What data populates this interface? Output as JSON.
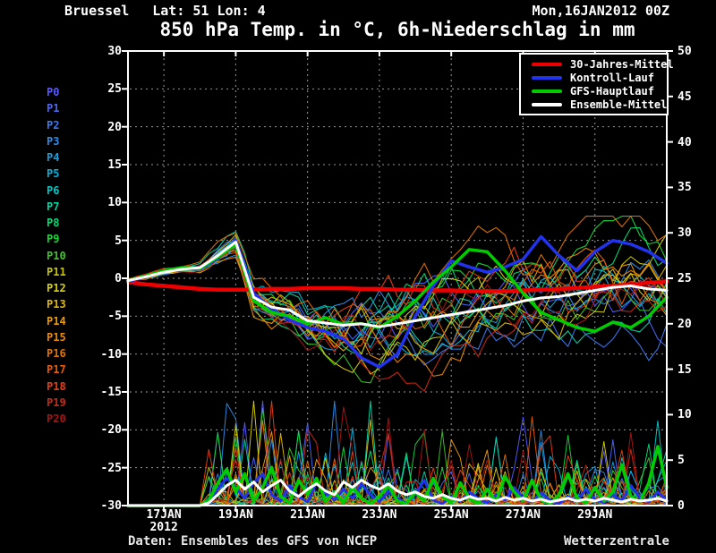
{
  "header": {
    "station": "Bruessel",
    "coords": "Lat: 51 Lon: 4",
    "datetime": "Mon,16JAN2012 00Z",
    "title": "850 hPa Temp. in °C, 6h-Niederschlag in mm"
  },
  "footer": {
    "source": "Daten: Ensembles des GFS von NCEP",
    "brand": "Wetterzentrale"
  },
  "legend": {
    "items": [
      {
        "label": "30-Jahres-Mittel",
        "color": "#ee0000"
      },
      {
        "label": "Kontroll-Lauf",
        "color": "#2233ee"
      },
      {
        "label": "GFS-Hauptlauf",
        "color": "#00cc00"
      },
      {
        "label": "Ensemble-Mittel",
        "color": "#ffffff"
      }
    ]
  },
  "chart_data": {
    "type": "line",
    "title": "850 hPa Temp. in °C, 6h-Niederschlag in mm",
    "x_axis": {
      "start": "16JAN2012 00Z",
      "unit": "days",
      "range": [
        0,
        15
      ],
      "tick_days": [
        1,
        3,
        5,
        7,
        9,
        11,
        13
      ],
      "tick_labels": [
        "17JAN",
        "19JAN",
        "21JAN",
        "23JAN",
        "25JAN",
        "27JAN",
        "29JAN"
      ],
      "year_label": "2012"
    },
    "y_axis_left": {
      "unit": "°C",
      "range": [
        -30,
        30
      ],
      "ticks": [
        30,
        25,
        20,
        15,
        10,
        5,
        0,
        -5,
        -10,
        -15,
        -20,
        -25,
        -30
      ],
      "grid": true
    },
    "y_axis_right": {
      "unit": "mm",
      "range": [
        0,
        50
      ],
      "ticks": [
        50,
        45,
        40,
        35,
        30,
        25,
        20,
        15,
        10,
        5,
        0
      ],
      "grid": false
    },
    "temperature_series": [
      {
        "name": "30-Jahres-Mittel",
        "color": "#ee0000",
        "width": 4.5,
        "step_days": 0.5,
        "values": [
          -0.5,
          -0.8,
          -1.0,
          -1.2,
          -1.4,
          -1.5,
          -1.5,
          -1.5,
          -1.4,
          -1.4,
          -1.3,
          -1.3,
          -1.3,
          -1.4,
          -1.4,
          -1.5,
          -1.5,
          -1.6,
          -1.6,
          -1.7,
          -1.7,
          -1.7,
          -1.6,
          -1.5,
          -1.4,
          -1.3,
          -1.1,
          -1.0,
          -0.8,
          -0.6,
          -0.4
        ]
      },
      {
        "name": "Kontroll-Lauf",
        "color": "#2233ee",
        "width": 3.5,
        "step_days": 0.5,
        "values": [
          -0.4,
          0.2,
          0.9,
          1.3,
          1.2,
          2.6,
          5.0,
          -2.0,
          -4.0,
          -5.5,
          -6.5,
          -7.0,
          -8.0,
          -10.5,
          -11.7,
          -10.0,
          -5.0,
          -1.0,
          2.3,
          1.5,
          0.8,
          1.5,
          2.5,
          5.5,
          3.0,
          1.0,
          3.5,
          5.0,
          4.5,
          3.5,
          2.0
        ]
      },
      {
        "name": "GFS-Hauptlauf",
        "color": "#00cc00",
        "width": 3.5,
        "step_days": 0.5,
        "values": [
          -0.3,
          0.3,
          1.0,
          1.4,
          1.3,
          2.8,
          4.5,
          -3.0,
          -4.5,
          -5.0,
          -6.0,
          -5.2,
          -6.1,
          -6.0,
          -6.5,
          -5.0,
          -3.0,
          -0.5,
          1.5,
          3.8,
          3.5,
          1.0,
          -2.0,
          -4.5,
          -5.5,
          -6.5,
          -7.0,
          -5.8,
          -6.5,
          -5.0,
          -2.5
        ]
      },
      {
        "name": "Ensemble-Mittel",
        "color": "#ffffff",
        "width": 3,
        "step_days": 0.5,
        "values": [
          -0.3,
          0.2,
          0.8,
          1.2,
          1.4,
          3.0,
          4.8,
          -2.5,
          -3.8,
          -4.2,
          -5.6,
          -5.9,
          -6.2,
          -6.0,
          -6.4,
          -6.0,
          -5.6,
          -5.2,
          -4.8,
          -4.4,
          -4.0,
          -3.6,
          -3.0,
          -2.6,
          -2.4,
          -2.0,
          -1.6,
          -1.2,
          -1.0,
          -1.4,
          -1.6
        ]
      }
    ],
    "precip_series": [
      {
        "name": "Kontroll-Lauf",
        "color": "#2233ee",
        "width": 3,
        "step_days": 0.25,
        "values": [
          0,
          0,
          0,
          0,
          0,
          0,
          0,
          0,
          0,
          0.3,
          1.8,
          3.0,
          2.0,
          0.8,
          2.5,
          3.5,
          1.2,
          0.5,
          2.2,
          1.0,
          0.4,
          2.6,
          1.4,
          0.6,
          1.8,
          0.8,
          2.4,
          1.2,
          0.4,
          1.6,
          0.8,
          0.3,
          1.2,
          2.8,
          0.6,
          0.2,
          1.0,
          0.5,
          1.5,
          0.8,
          0.3,
          1.2,
          0.6,
          2.0,
          0.8,
          0.4,
          1.4,
          0.6,
          0.2,
          1.0,
          0.5,
          1.8,
          0.7,
          0.3,
          1.2,
          0.5,
          2.2,
          0.9,
          0.4,
          1.5,
          0.6
        ]
      },
      {
        "name": "GFS-Hauptlauf",
        "color": "#00cc00",
        "width": 3.5,
        "step_days": 0.25,
        "values": [
          0,
          0,
          0,
          0,
          0,
          0,
          0,
          0,
          0,
          0.5,
          2.5,
          4.0,
          1.5,
          3.5,
          0.5,
          2.0,
          4.2,
          1.0,
          0.3,
          2.8,
          1.2,
          3.0,
          0.5,
          1.5,
          0.3,
          2.0,
          0.8,
          0.2,
          1.0,
          2.2,
          0.5,
          0.2,
          1.5,
          0.5,
          3.0,
          1.0,
          0.3,
          2.5,
          0.8,
          0.2,
          1.8,
          0.4,
          3.2,
          1.5,
          0.5,
          2.8,
          0.6,
          0.2,
          1.2,
          3.5,
          0.8,
          0.3,
          2.0,
          0.5,
          1.5,
          4.5,
          1.0,
          0.4,
          2.5,
          6.5,
          2.0
        ]
      },
      {
        "name": "Ensemble-Mittel",
        "color": "#ffffff",
        "width": 3,
        "step_days": 0.25,
        "values": [
          0,
          0,
          0,
          0,
          0,
          0,
          0,
          0,
          0,
          0.3,
          1.2,
          2.2,
          2.8,
          1.8,
          2.6,
          1.5,
          2.2,
          2.8,
          1.6,
          1.0,
          1.8,
          2.4,
          1.6,
          1.2,
          2.6,
          2.0,
          2.8,
          2.2,
          1.8,
          2.4,
          1.6,
          1.2,
          1.5,
          1.0,
          0.8,
          1.2,
          0.8,
          0.6,
          1.0,
          0.7,
          0.8,
          0.5,
          0.9,
          0.6,
          0.8,
          0.5,
          0.7,
          0.4,
          0.6,
          0.8,
          0.5,
          0.7,
          0.5,
          0.8,
          0.6,
          0.4,
          0.7,
          0.5,
          0.6,
          0.8,
          0.5
        ]
      }
    ],
    "ensemble_members": [
      {
        "label": "P0",
        "color": "#5858ff",
        "seed": 11
      },
      {
        "label": "P1",
        "color": "#4a66f8",
        "seed": 23
      },
      {
        "label": "P2",
        "color": "#3c78f0",
        "seed": 35
      },
      {
        "label": "P3",
        "color": "#2a8ce8",
        "seed": 47
      },
      {
        "label": "P4",
        "color": "#14a0e0",
        "seed": 59
      },
      {
        "label": "P5",
        "color": "#00b4dc",
        "seed": 71
      },
      {
        "label": "P6",
        "color": "#00c8c8",
        "seed": 83
      },
      {
        "label": "P7",
        "color": "#00d4a4",
        "seed": 95
      },
      {
        "label": "P8",
        "color": "#00dc78",
        "seed": 107
      },
      {
        "label": "P9",
        "color": "#18d838",
        "seed": 119
      },
      {
        "label": "P10",
        "color": "#3cc428",
        "seed": 131
      },
      {
        "label": "P11",
        "color": "#c8c400",
        "seed": 143
      },
      {
        "label": "P12",
        "color": "#d8d200",
        "seed": 155
      },
      {
        "label": "P13",
        "color": "#e0b800",
        "seed": 167
      },
      {
        "label": "P14",
        "color": "#ec9c00",
        "seed": 179
      },
      {
        "label": "P15",
        "color": "#ee8800",
        "seed": 191
      },
      {
        "label": "P16",
        "color": "#e07200",
        "seed": 203
      },
      {
        "label": "P17",
        "color": "#ea5a00",
        "seed": 215
      },
      {
        "label": "P18",
        "color": "#e83c10",
        "seed": 227
      },
      {
        "label": "P19",
        "color": "#cc2814",
        "seed": 239
      },
      {
        "label": "P20",
        "color": "#a81414",
        "seed": 251
      }
    ]
  }
}
